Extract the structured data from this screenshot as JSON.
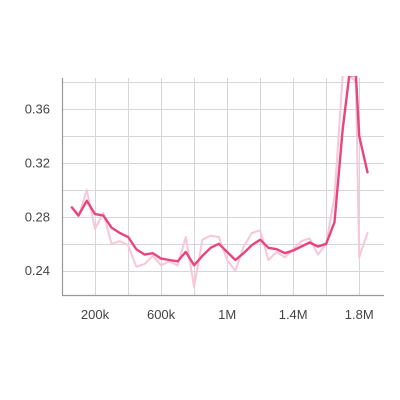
{
  "chart_data": {
    "type": "line",
    "title": "",
    "xlabel": "",
    "ylabel": "",
    "xlim": [
      0,
      1950000
    ],
    "ylim": [
      0.222,
      0.383
    ],
    "x_ticks": [
      {
        "value": 200000,
        "label": "200k"
      },
      {
        "value": 600000,
        "label": "600k"
      },
      {
        "value": 1000000,
        "label": "1M"
      },
      {
        "value": 1400000,
        "label": "1.4M"
      },
      {
        "value": 1800000,
        "label": "1.8M"
      }
    ],
    "x_minor_gridlines": [
      0,
      400000,
      800000,
      1200000,
      1600000
    ],
    "y_ticks": [
      {
        "value": 0.24,
        "label": "0.24"
      },
      {
        "value": 0.28,
        "label": "0.28"
      },
      {
        "value": 0.32,
        "label": "0.32"
      },
      {
        "value": 0.36,
        "label": "0.36"
      }
    ],
    "y_minor_gridlines": [
      0.26,
      0.3,
      0.34,
      0.38
    ],
    "grid": true,
    "series": [
      {
        "role": "raw",
        "color": "#f8c6d8",
        "x": [
          60000,
          100000,
          150000,
          200000,
          250000,
          300000,
          350000,
          400000,
          450000,
          500000,
          550000,
          600000,
          650000,
          700000,
          750000,
          800000,
          850000,
          900000,
          950000,
          1000000,
          1050000,
          1100000,
          1150000,
          1200000,
          1250000,
          1300000,
          1350000,
          1400000,
          1450000,
          1500000,
          1550000,
          1600000,
          1650000,
          1700000,
          1740000,
          1780000,
          1800000,
          1850000
        ],
        "y": [
          0.287,
          0.28,
          0.3,
          0.271,
          0.283,
          0.26,
          0.262,
          0.259,
          0.243,
          0.245,
          0.251,
          0.244,
          0.247,
          0.244,
          0.265,
          0.228,
          0.263,
          0.266,
          0.265,
          0.248,
          0.24,
          0.258,
          0.268,
          0.27,
          0.248,
          0.254,
          0.25,
          0.256,
          0.262,
          0.264,
          0.252,
          0.26,
          0.295,
          0.385,
          0.385,
          0.38,
          0.25,
          0.268
        ]
      },
      {
        "role": "smoothed",
        "color": "#e8457a",
        "x": [
          60000,
          100000,
          150000,
          200000,
          250000,
          300000,
          350000,
          400000,
          450000,
          500000,
          550000,
          600000,
          650000,
          700000,
          750000,
          800000,
          850000,
          900000,
          950000,
          1000000,
          1050000,
          1100000,
          1150000,
          1200000,
          1250000,
          1300000,
          1350000,
          1400000,
          1450000,
          1500000,
          1550000,
          1600000,
          1650000,
          1700000,
          1740000,
          1780000,
          1800000,
          1850000
        ],
        "y": [
          0.287,
          0.281,
          0.292,
          0.282,
          0.281,
          0.272,
          0.268,
          0.265,
          0.256,
          0.252,
          0.253,
          0.249,
          0.248,
          0.247,
          0.254,
          0.244,
          0.251,
          0.257,
          0.26,
          0.254,
          0.248,
          0.253,
          0.259,
          0.263,
          0.257,
          0.256,
          0.253,
          0.255,
          0.258,
          0.261,
          0.258,
          0.26,
          0.276,
          0.345,
          0.385,
          0.385,
          0.34,
          0.313
        ]
      }
    ]
  }
}
